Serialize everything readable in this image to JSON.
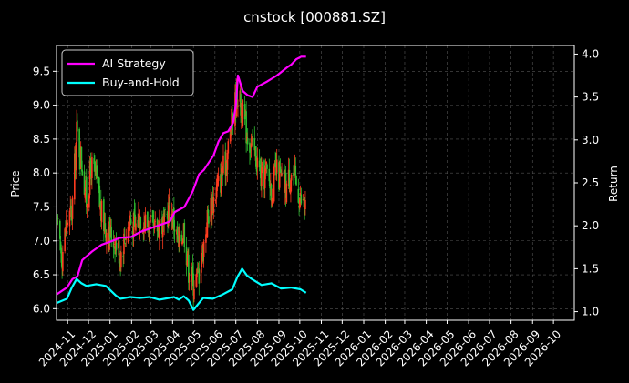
{
  "colors": {
    "background": "#000000",
    "grid": "#555555",
    "axis": "#ffffff",
    "candle_up": "#ff3b1f",
    "candle_down": "#2fbf2f",
    "ai_strategy": "#ff00ff",
    "buy_and_hold": "#00ffff"
  },
  "chart_data": {
    "type": "line",
    "title": "cnstock [000881.SZ]",
    "xlabel": "",
    "ylabel": "Price",
    "y2label": "Return",
    "grid": true,
    "legend_position": "top-left",
    "x_range": [
      "2024-10-16",
      "2026-10-31"
    ],
    "ylim": [
      5.83,
      9.88
    ],
    "y2lim": [
      0.9,
      4.1
    ],
    "y_ticks": [
      "6.0",
      "6.5",
      "7.0",
      "7.5",
      "8.0",
      "8.5",
      "9.0",
      "9.5"
    ],
    "y2_ticks": [
      "1.0",
      "1.5",
      "2.0",
      "2.5",
      "3.0",
      "3.5",
      "4.0"
    ],
    "x_ticks": [
      "2024-11",
      "2024-12",
      "2025-01",
      "2025-02",
      "2025-03",
      "2025-04",
      "2025-05",
      "2025-06",
      "2025-07",
      "2025-08",
      "2025-09",
      "2025-10",
      "2025-11",
      "2025-12",
      "2026-01",
      "2026-02",
      "2026-03",
      "2026-04",
      "2026-05",
      "2026-06",
      "2026-07",
      "2026-08",
      "2026-09",
      "2026-10"
    ],
    "price_series": {
      "name": "Price",
      "dates": [
        "2024-10-17",
        "2024-10-24",
        "2024-10-31",
        "2024-11-07",
        "2024-11-14",
        "2024-11-21",
        "2024-11-28",
        "2024-12-05",
        "2024-12-12",
        "2024-12-19",
        "2024-12-26",
        "2025-01-02",
        "2025-01-09",
        "2025-01-16",
        "2025-01-23",
        "2025-01-30",
        "2025-02-06",
        "2025-02-13",
        "2025-02-20",
        "2025-02-27",
        "2025-03-06",
        "2025-03-13",
        "2025-03-20",
        "2025-03-27",
        "2025-04-03",
        "2025-04-10",
        "2025-04-17",
        "2025-04-24",
        "2025-05-01",
        "2025-05-08",
        "2025-05-15",
        "2025-05-22",
        "2025-05-29",
        "2025-06-05",
        "2025-06-12",
        "2025-06-19",
        "2025-06-26",
        "2025-07-03",
        "2025-07-10",
        "2025-07-17",
        "2025-07-24",
        "2025-07-31",
        "2025-08-07",
        "2025-08-14",
        "2025-08-21",
        "2025-08-28",
        "2025-09-04",
        "2025-09-11",
        "2025-09-18",
        "2025-09-25",
        "2025-10-02",
        "2025-10-09"
      ],
      "values": [
        7.2,
        6.8,
        7.3,
        7.4,
        8.6,
        8.2,
        7.6,
        8.1,
        7.9,
        7.4,
        7.2,
        7.1,
        7.0,
        6.8,
        7.1,
        7.3,
        7.2,
        7.4,
        7.3,
        7.2,
        7.1,
        7.3,
        7.2,
        7.5,
        7.3,
        6.9,
        7.2,
        6.6,
        6.4,
        6.5,
        6.9,
        7.4,
        7.6,
        7.8,
        8.0,
        8.3,
        8.8,
        9.2,
        8.9,
        8.6,
        8.4,
        8.2,
        7.9,
        8.0,
        7.8,
        8.0,
        7.9,
        7.8,
        8.0,
        7.9,
        7.6,
        7.5
      ]
    },
    "series": [
      {
        "name": "AI Strategy",
        "dates": [
          "2024-10-16",
          "2024-10-31",
          "2024-11-08",
          "2024-11-15",
          "2024-11-22",
          "2024-12-06",
          "2024-12-20",
          "2025-01-03",
          "2025-01-15",
          "2025-01-31",
          "2025-02-14",
          "2025-02-28",
          "2025-03-14",
          "2025-03-28",
          "2025-04-04",
          "2025-04-18",
          "2025-04-30",
          "2025-05-09",
          "2025-05-16",
          "2025-05-30",
          "2025-06-06",
          "2025-06-13",
          "2025-06-20",
          "2025-06-27",
          "2025-07-01",
          "2025-07-04",
          "2025-07-11",
          "2025-07-18",
          "2025-07-25",
          "2025-08-01",
          "2025-08-15",
          "2025-08-29",
          "2025-09-12",
          "2025-09-19",
          "2025-09-26",
          "2025-10-03",
          "2025-10-10"
        ],
        "values": [
          1.2,
          1.28,
          1.38,
          1.41,
          1.6,
          1.7,
          1.78,
          1.82,
          1.86,
          1.87,
          1.93,
          1.97,
          2.01,
          2.05,
          2.16,
          2.22,
          2.4,
          2.6,
          2.65,
          2.82,
          2.98,
          3.08,
          3.1,
          3.2,
          3.4,
          3.75,
          3.57,
          3.52,
          3.5,
          3.62,
          3.68,
          3.75,
          3.84,
          3.88,
          3.94,
          3.97,
          3.97
        ]
      },
      {
        "name": "Buy-and-Hold",
        "dates": [
          "2024-10-16",
          "2024-10-31",
          "2024-11-07",
          "2024-11-14",
          "2024-11-21",
          "2024-11-28",
          "2024-12-12",
          "2024-12-26",
          "2025-01-09",
          "2025-01-16",
          "2025-01-30",
          "2025-02-13",
          "2025-02-27",
          "2025-03-13",
          "2025-03-27",
          "2025-04-03",
          "2025-04-10",
          "2025-04-17",
          "2025-04-24",
          "2025-05-01",
          "2025-05-08",
          "2025-05-15",
          "2025-05-29",
          "2025-06-12",
          "2025-06-26",
          "2025-07-03",
          "2025-07-10",
          "2025-07-17",
          "2025-07-24",
          "2025-08-07",
          "2025-08-21",
          "2025-09-04",
          "2025-09-18",
          "2025-10-02",
          "2025-10-10"
        ],
        "values": [
          1.1,
          1.15,
          1.28,
          1.38,
          1.33,
          1.3,
          1.32,
          1.3,
          1.19,
          1.15,
          1.17,
          1.16,
          1.17,
          1.14,
          1.16,
          1.17,
          1.14,
          1.18,
          1.13,
          1.02,
          1.09,
          1.16,
          1.15,
          1.2,
          1.26,
          1.4,
          1.5,
          1.42,
          1.38,
          1.31,
          1.33,
          1.27,
          1.28,
          1.26,
          1.22
        ]
      }
    ]
  }
}
